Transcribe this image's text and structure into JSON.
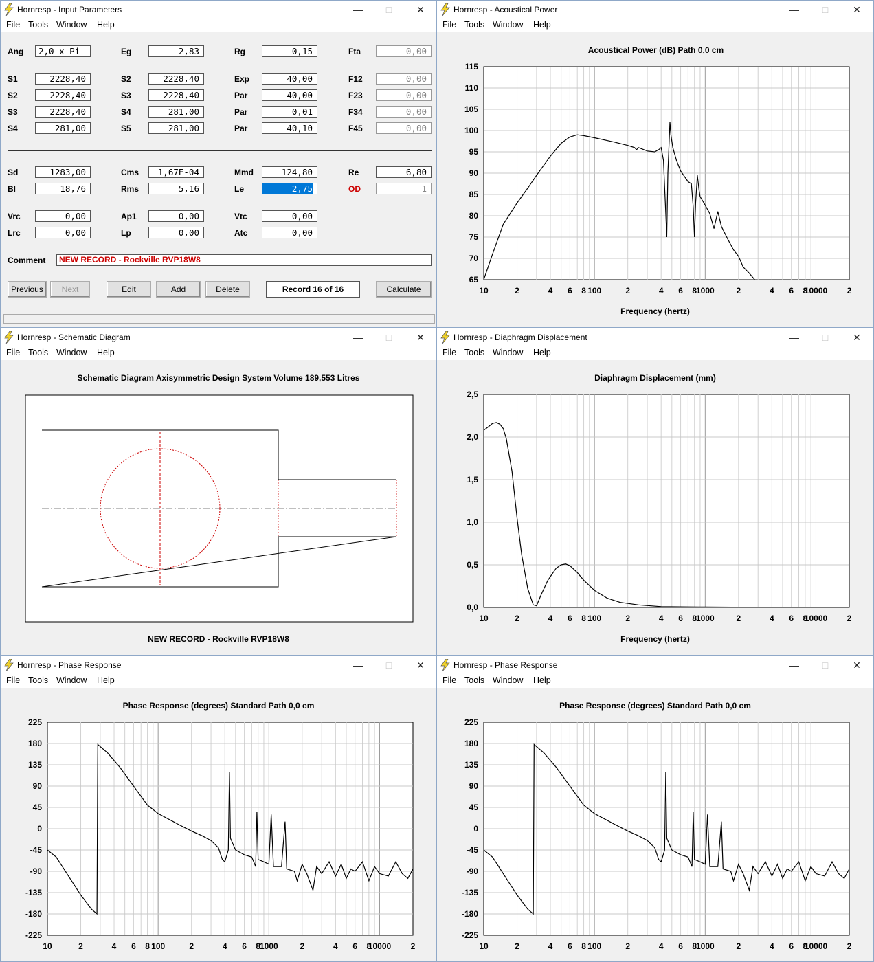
{
  "menus": [
    "File",
    "Tools",
    "Window",
    "Help"
  ],
  "windows": {
    "input": {
      "title": "Hornresp - Input Parameters"
    },
    "acoustical": {
      "title": "Hornresp - Acoustical Power"
    },
    "schematic": {
      "title": "Hornresp - Schematic Diagram"
    },
    "displacement": {
      "title": "Hornresp - Diaphragm Displacement"
    },
    "phase1": {
      "title": "Hornresp - Phase Response"
    },
    "phase2": {
      "title": "Hornresp - Phase Response"
    }
  },
  "params": {
    "Ang": {
      "label": "Ang",
      "value": "2,0 x Pi"
    },
    "Eg": {
      "label": "Eg",
      "value": "2,83"
    },
    "Rg": {
      "label": "Rg",
      "value": "0,15"
    },
    "Fta": {
      "label": "Fta",
      "value": "0,00"
    },
    "S1": {
      "label": "S1",
      "value": "2228,40"
    },
    "S2a": {
      "label": "S2",
      "value": "2228,40"
    },
    "Exp": {
      "label": "Exp",
      "value": "40,00"
    },
    "F12": {
      "label": "F12",
      "value": "0,00"
    },
    "S2": {
      "label": "S2",
      "value": "2228,40"
    },
    "S3a": {
      "label": "S3",
      "value": "2228,40"
    },
    "Par1": {
      "label": "Par",
      "value": "40,00"
    },
    "F23": {
      "label": "F23",
      "value": "0,00"
    },
    "S3": {
      "label": "S3",
      "value": "2228,40"
    },
    "S4a": {
      "label": "S4",
      "value": "281,00"
    },
    "Par2": {
      "label": "Par",
      "value": "0,01"
    },
    "F34": {
      "label": "F34",
      "value": "0,00"
    },
    "S4": {
      "label": "S4",
      "value": "281,00"
    },
    "S5": {
      "label": "S5",
      "value": "281,00"
    },
    "Par3": {
      "label": "Par",
      "value": "40,10"
    },
    "F45": {
      "label": "F45",
      "value": "0,00"
    },
    "Sd": {
      "label": "Sd",
      "value": "1283,00"
    },
    "Cms": {
      "label": "Cms",
      "value": "1,67E-04"
    },
    "Mmd": {
      "label": "Mmd",
      "value": "124,80"
    },
    "Re": {
      "label": "Re",
      "value": "6,80"
    },
    "Bl": {
      "label": "Bl",
      "value": "18,76"
    },
    "Rms": {
      "label": "Rms",
      "value": "5,16"
    },
    "Le": {
      "label": "Le",
      "value": "2,75"
    },
    "OD": {
      "label": "OD",
      "value": "1"
    },
    "Vrc": {
      "label": "Vrc",
      "value": "0,00"
    },
    "Ap1": {
      "label": "Ap1",
      "value": "0,00"
    },
    "Vtc": {
      "label": "Vtc",
      "value": "0,00"
    },
    "Lrc": {
      "label": "Lrc",
      "value": "0,00"
    },
    "Lp": {
      "label": "Lp",
      "value": "0,00"
    },
    "Atc": {
      "label": "Atc",
      "value": "0,00"
    },
    "Comment": {
      "label": "Comment",
      "value": "NEW RECORD - Rockville RVP18W8"
    }
  },
  "buttons": {
    "previous": "Previous",
    "next": "Next",
    "edit": "Edit",
    "add": "Add",
    "delete": "Delete",
    "record": "Record 16 of 16",
    "calculate": "Calculate"
  },
  "schematic": {
    "title": "Schematic Diagram   Axisymmetric Design   System Volume 189,553 Litres",
    "caption": "NEW RECORD - Rockville RVP18W8",
    "line_color": "#cc0000"
  },
  "x_ticks": [
    "10",
    "2",
    "4",
    "6",
    "8",
    "100",
    "2",
    "4",
    "6",
    "8",
    "1000",
    "2",
    "4",
    "6",
    "8",
    "10000",
    "2"
  ],
  "chart_data": [
    {
      "type": "line",
      "title": "Acoustical Power (dB)   Path 0,0 cm",
      "xlabel": "Frequency (hertz)",
      "ylabel": "",
      "x_scale": "log",
      "xlim": [
        10,
        20000
      ],
      "ylim": [
        65,
        115
      ],
      "yticks": [
        "115",
        "110",
        "105",
        "100",
        "95",
        "90",
        "85",
        "80",
        "75",
        "70",
        "65"
      ],
      "grid": true,
      "series": [
        {
          "points": [
            [
              10,
              65
            ],
            [
              12,
              71
            ],
            [
              15,
              78
            ],
            [
              20,
              83
            ],
            [
              25,
              86.5
            ],
            [
              30,
              89.5
            ],
            [
              40,
              94
            ],
            [
              50,
              97
            ],
            [
              60,
              98.5
            ],
            [
              70,
              99
            ],
            [
              80,
              98.8
            ],
            [
              100,
              98.3
            ],
            [
              150,
              97.3
            ],
            [
              200,
              96.5
            ],
            [
              230,
              96
            ],
            [
              240,
              95.5
            ],
            [
              250,
              96
            ],
            [
              300,
              95.2
            ],
            [
              350,
              95
            ],
            [
              380,
              95.5
            ],
            [
              400,
              96
            ],
            [
              420,
              93
            ],
            [
              450,
              75
            ],
            [
              460,
              90
            ],
            [
              470,
              96
            ],
            [
              480,
              102
            ],
            [
              490,
              99
            ],
            [
              510,
              96
            ],
            [
              550,
              93
            ],
            [
              600,
              90.5
            ],
            [
              700,
              88
            ],
            [
              750,
              87.5
            ],
            [
              780,
              82
            ],
            [
              800,
              75
            ],
            [
              820,
              83
            ],
            [
              850,
              89.5
            ],
            [
              880,
              86
            ],
            [
              900,
              84.5
            ],
            [
              1000,
              82.5
            ],
            [
              1100,
              80.5
            ],
            [
              1200,
              77
            ],
            [
              1300,
              81
            ],
            [
              1400,
              77.5
            ],
            [
              1600,
              74.5
            ],
            [
              1800,
              72
            ],
            [
              2000,
              70.5
            ],
            [
              2200,
              68
            ],
            [
              2500,
              66.5
            ],
            [
              2800,
              65
            ]
          ]
        }
      ]
    },
    {
      "type": "line",
      "title": "Diaphragm Displacement (mm)",
      "xlabel": "Frequency (hertz)",
      "ylabel": "",
      "x_scale": "log",
      "xlim": [
        10,
        20000
      ],
      "ylim": [
        0,
        2.5
      ],
      "yticks": [
        "2,5",
        "2,0",
        "1,5",
        "1,0",
        "0,5",
        "0,0"
      ],
      "grid": true,
      "series": [
        {
          "points": [
            [
              10,
              2.08
            ],
            [
              11,
              2.12
            ],
            [
              12,
              2.16
            ],
            [
              13,
              2.17
            ],
            [
              14,
              2.15
            ],
            [
              15,
              2.1
            ],
            [
              16,
              1.98
            ],
            [
              18,
              1.6
            ],
            [
              20,
              1.05
            ],
            [
              22,
              0.62
            ],
            [
              25,
              0.22
            ],
            [
              28,
              0.03
            ],
            [
              30,
              0.02
            ],
            [
              33,
              0.15
            ],
            [
              38,
              0.32
            ],
            [
              45,
              0.46
            ],
            [
              50,
              0.5
            ],
            [
              55,
              0.51
            ],
            [
              60,
              0.49
            ],
            [
              70,
              0.41
            ],
            [
              80,
              0.32
            ],
            [
              100,
              0.2
            ],
            [
              130,
              0.11
            ],
            [
              170,
              0.06
            ],
            [
              250,
              0.03
            ],
            [
              400,
              0.01
            ],
            [
              1000,
              0.005
            ],
            [
              3000,
              0.002
            ],
            [
              20000,
              0.001
            ]
          ]
        }
      ]
    },
    {
      "type": "line",
      "title": "Phase Response (degrees)   Standard   Path 0,0 cm",
      "xlabel": "",
      "ylabel": "",
      "x_scale": "log",
      "xlim": [
        10,
        20000
      ],
      "ylim": [
        -225,
        225
      ],
      "yticks": [
        "225",
        "180",
        "135",
        "90",
        "45",
        "0",
        "-45",
        "-90",
        "-135",
        "-180",
        "-225"
      ],
      "grid": true,
      "series": [
        {
          "points": [
            [
              10,
              -45
            ],
            [
              12,
              -60
            ],
            [
              15,
              -95
            ],
            [
              20,
              -140
            ],
            [
              25,
              -170
            ],
            [
              28,
              -180
            ],
            [
              28.5,
              178
            ],
            [
              35,
              160
            ],
            [
              45,
              130
            ],
            [
              60,
              90
            ],
            [
              80,
              50
            ],
            [
              100,
              32
            ],
            [
              150,
              10
            ],
            [
              200,
              -5
            ],
            [
              250,
              -15
            ],
            [
              300,
              -25
            ],
            [
              350,
              -40
            ],
            [
              380,
              -65
            ],
            [
              400,
              -70
            ],
            [
              430,
              -45
            ],
            [
              440,
              120
            ],
            [
              450,
              -20
            ],
            [
              500,
              -45
            ],
            [
              600,
              -55
            ],
            [
              700,
              -60
            ],
            [
              760,
              -80
            ],
            [
              780,
              35
            ],
            [
              800,
              -65
            ],
            [
              900,
              -70
            ],
            [
              1000,
              -75
            ],
            [
              1050,
              30
            ],
            [
              1100,
              -80
            ],
            [
              1300,
              -80
            ],
            [
              1400,
              15
            ],
            [
              1450,
              -85
            ],
            [
              1700,
              -90
            ],
            [
              1800,
              -110
            ],
            [
              2000,
              -75
            ],
            [
              2200,
              -95
            ],
            [
              2500,
              -130
            ],
            [
              2700,
              -80
            ],
            [
              3000,
              -95
            ],
            [
              3500,
              -70
            ],
            [
              4000,
              -100
            ],
            [
              4500,
              -75
            ],
            [
              5000,
              -105
            ],
            [
              5500,
              -85
            ],
            [
              6000,
              -90
            ],
            [
              7000,
              -70
            ],
            [
              8000,
              -110
            ],
            [
              9000,
              -80
            ],
            [
              10000,
              -95
            ],
            [
              12000,
              -100
            ],
            [
              14000,
              -70
            ],
            [
              16000,
              -95
            ],
            [
              18000,
              -105
            ],
            [
              20000,
              -85
            ]
          ]
        }
      ]
    },
    {
      "type": "line",
      "title": "Phase Response (degrees)   Standard   Path 0,0 cm",
      "xlabel": "",
      "ylabel": "",
      "x_scale": "log",
      "xlim": [
        10,
        20000
      ],
      "ylim": [
        -225,
        225
      ],
      "yticks": [
        "225",
        "180",
        "135",
        "90",
        "45",
        "0",
        "-45",
        "-90",
        "-135",
        "-180",
        "-225"
      ],
      "grid": true,
      "series": [
        {
          "points": [
            [
              10,
              -45
            ],
            [
              12,
              -60
            ],
            [
              15,
              -95
            ],
            [
              20,
              -140
            ],
            [
              25,
              -170
            ],
            [
              28,
              -180
            ],
            [
              28.5,
              178
            ],
            [
              35,
              160
            ],
            [
              45,
              130
            ],
            [
              60,
              90
            ],
            [
              80,
              50
            ],
            [
              100,
              32
            ],
            [
              150,
              10
            ],
            [
              200,
              -5
            ],
            [
              250,
              -15
            ],
            [
              300,
              -25
            ],
            [
              350,
              -40
            ],
            [
              380,
              -65
            ],
            [
              400,
              -70
            ],
            [
              430,
              -45
            ],
            [
              440,
              120
            ],
            [
              450,
              -20
            ],
            [
              500,
              -45
            ],
            [
              600,
              -55
            ],
            [
              700,
              -60
            ],
            [
              760,
              -80
            ],
            [
              780,
              35
            ],
            [
              800,
              -65
            ],
            [
              900,
              -70
            ],
            [
              1000,
              -75
            ],
            [
              1050,
              30
            ],
            [
              1100,
              -80
            ],
            [
              1300,
              -80
            ],
            [
              1400,
              15
            ],
            [
              1450,
              -85
            ],
            [
              1700,
              -90
            ],
            [
              1800,
              -110
            ],
            [
              2000,
              -75
            ],
            [
              2200,
              -95
            ],
            [
              2500,
              -130
            ],
            [
              2700,
              -80
            ],
            [
              3000,
              -95
            ],
            [
              3500,
              -70
            ],
            [
              4000,
              -100
            ],
            [
              4500,
              -75
            ],
            [
              5000,
              -105
            ],
            [
              5500,
              -85
            ],
            [
              6000,
              -90
            ],
            [
              7000,
              -70
            ],
            [
              8000,
              -110
            ],
            [
              9000,
              -80
            ],
            [
              10000,
              -95
            ],
            [
              12000,
              -100
            ],
            [
              14000,
              -70
            ],
            [
              16000,
              -95
            ],
            [
              18000,
              -105
            ],
            [
              20000,
              -85
            ]
          ]
        }
      ]
    }
  ]
}
